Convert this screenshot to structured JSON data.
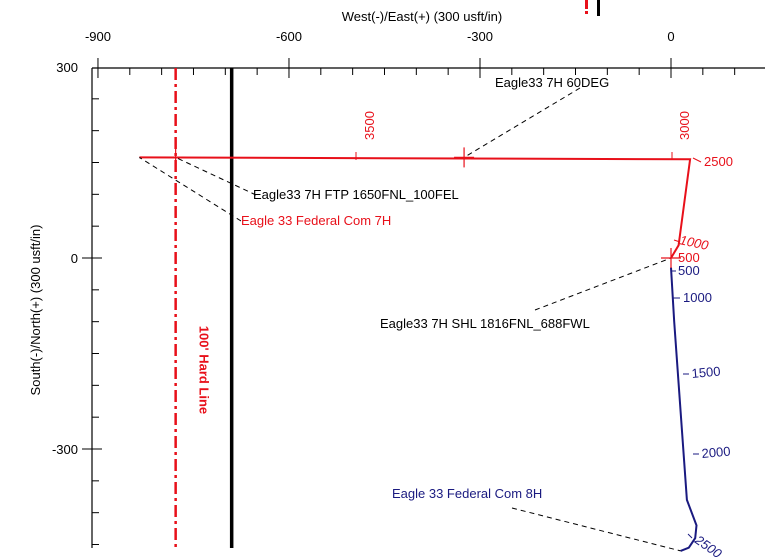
{
  "chart_data": {
    "type": "line",
    "title": "",
    "xlabel": "West(-)/East(+) (300 usft/in)",
    "ylabel": "South(-)/North(+) (300 usft/in)",
    "xlim": [
      -950,
      270
    ],
    "ylim": [
      -455,
      350
    ],
    "x_ticks": [
      -900,
      -600,
      -300,
      0
    ],
    "x_tick_labels": [
      "-900",
      "-600",
      "-300",
      "0"
    ],
    "y_ticks": [
      300,
      0,
      -300
    ],
    "y_tick_labels": [
      "300",
      "0",
      "-300"
    ],
    "grid": false,
    "colors": {
      "red_well": "#e8101a",
      "blue_well": "#1a1a80",
      "hard_line": "#e8101a",
      "lease_line": "#000000",
      "axes": "#000000",
      "leader": "#000000"
    },
    "series": [
      {
        "name": "Eagle 33 Federal Com 7H",
        "x": [
          0,
          12,
          30,
          -835
        ],
        "y": [
          0,
          20,
          155,
          158
        ]
      },
      {
        "name": "Eagle 33 Federal Com 8H",
        "x": [
          0,
          5,
          25,
          40,
          38,
          28,
          15
        ],
        "y": [
          -15,
          -100,
          -380,
          -420,
          -440,
          -455,
          -460
        ]
      }
    ],
    "hard_line": {
      "label": "100' Hard Line",
      "x": -778
    },
    "lease_line": {
      "x": -690
    },
    "md_labels": [
      {
        "text": "3500",
        "x": -490,
        "y": 165,
        "series": "Eagle 33 Federal Com 7H"
      },
      {
        "text": "3000",
        "x": 5,
        "y": 165,
        "series": "Eagle 33 Federal Com 7H"
      },
      {
        "text": "2500",
        "x": 60,
        "y": 152,
        "series": "Eagle 33 Federal Com 7H"
      },
      {
        "text": "1000",
        "x": 5,
        "y": 28,
        "series": "Eagle 33 Federal Com 7H"
      },
      {
        "text": "500",
        "x": -12,
        "y": 0,
        "series": "Eagle 33 Federal Com 7H"
      },
      {
        "text": "500",
        "x": -12,
        "y": -20,
        "series": "Eagle 33 Federal Com 8H"
      },
      {
        "text": "1000",
        "x": 5,
        "y": -60,
        "series": "Eagle 33 Federal Com 8H"
      },
      {
        "text": "1500",
        "x": 25,
        "y": -180,
        "series": "Eagle 33 Federal Com 8H"
      },
      {
        "text": "2000",
        "x": 45,
        "y": -300,
        "series": "Eagle 33 Federal Com 8H"
      },
      {
        "text": "2500",
        "x": 40,
        "y": -460,
        "series": "Eagle 33 Federal Com 8H"
      }
    ],
    "annotations": [
      {
        "text": "Eagle33 7H 60DEG",
        "target_x": -325,
        "target_y": 158
      },
      {
        "text": "Eagle33 7H FTP 1650FNL_100FEL",
        "target_x": -778,
        "target_y": 158
      },
      {
        "text": "Eagle 33 Federal Com 7H",
        "target_x": -835,
        "target_y": 158
      },
      {
        "text": "Eagle33 7H SHL 1816FNL_688FWL",
        "target_x": 0,
        "target_y": 0
      },
      {
        "text": "Eagle 33 Federal Com 8H",
        "target_x": 15,
        "target_y": -460
      }
    ]
  }
}
